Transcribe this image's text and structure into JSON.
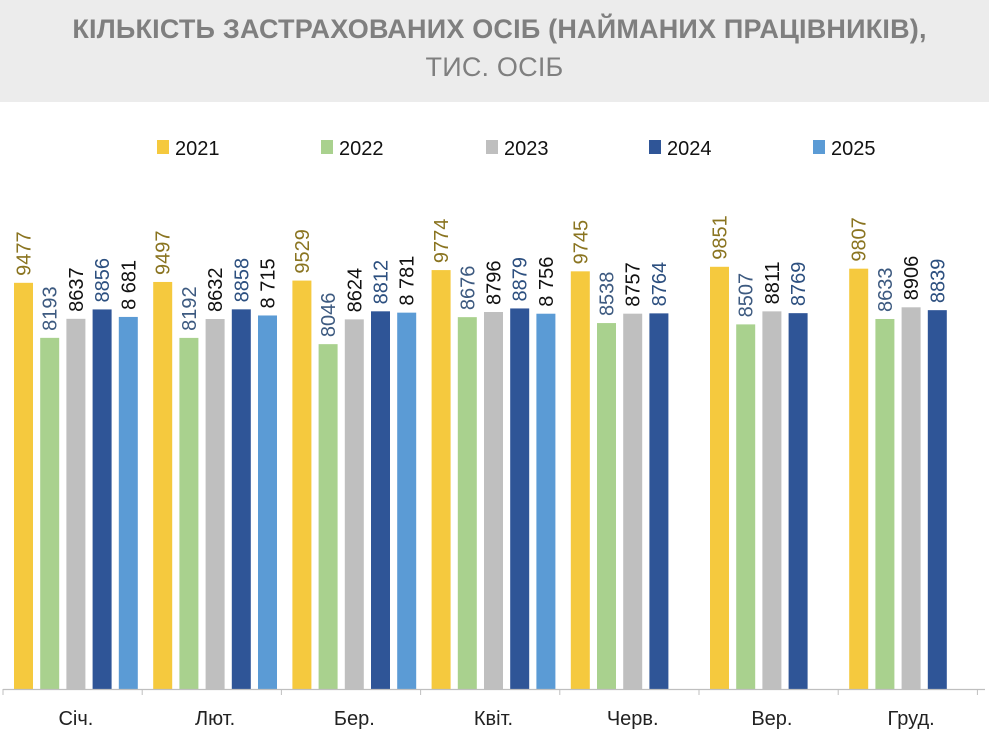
{
  "title": {
    "line1": "КІЛЬКІСТЬ ЗАСТРАХОВАНИХ ОСІБ (НАЙМАНИХ ПРАЦІВНИКІВ),",
    "line2": "ТИС. ОСІБ"
  },
  "chart_data": {
    "type": "bar",
    "categories": [
      "Січ.",
      "Лют.",
      "Бер.",
      "Квіт.",
      "Черв.",
      "Вер.",
      "Груд."
    ],
    "ylim": [
      0,
      11000
    ],
    "grid": false,
    "legend_position": "top",
    "series": [
      {
        "name": "2021",
        "color": "#F5C93E",
        "label_color": "#8a7420",
        "values": [
          9477,
          9497,
          9529,
          9774,
          9745,
          9851,
          9807
        ],
        "labels": [
          "9477",
          "9497",
          "9529",
          "9774",
          "9745",
          "9851",
          "9807"
        ]
      },
      {
        "name": "2022",
        "color": "#A9D18E",
        "label_color": "#3d5a80",
        "values": [
          8193,
          8192,
          8046,
          8676,
          8538,
          8507,
          8633
        ],
        "labels": [
          "8193",
          "8192",
          "8046",
          "8676",
          "8538",
          "8507",
          "8633"
        ]
      },
      {
        "name": "2023",
        "color": "#BFBFBF",
        "label_color": "#111111",
        "values": [
          8637,
          8632,
          8624,
          8796,
          8757,
          8811,
          8906
        ],
        "labels": [
          "8637",
          "8632",
          "8624",
          "8796",
          "8757",
          "8811",
          "8906"
        ]
      },
      {
        "name": "2024",
        "color": "#2F5597",
        "label_color": "#2c4f7f",
        "values": [
          8856,
          8858,
          8812,
          8879,
          8764,
          8769,
          8839
        ],
        "labels": [
          "8856",
          "8858",
          "8812",
          "8879",
          "8764",
          "8769",
          "8839"
        ]
      },
      {
        "name": "2025",
        "color": "#5B9BD5",
        "label_color": "#111111",
        "values": [
          8681,
          8715,
          8781,
          8756,
          null,
          null,
          null
        ],
        "labels": [
          "8 681",
          "8 715",
          "8 781",
          "8 756",
          "",
          "",
          ""
        ]
      }
    ]
  }
}
